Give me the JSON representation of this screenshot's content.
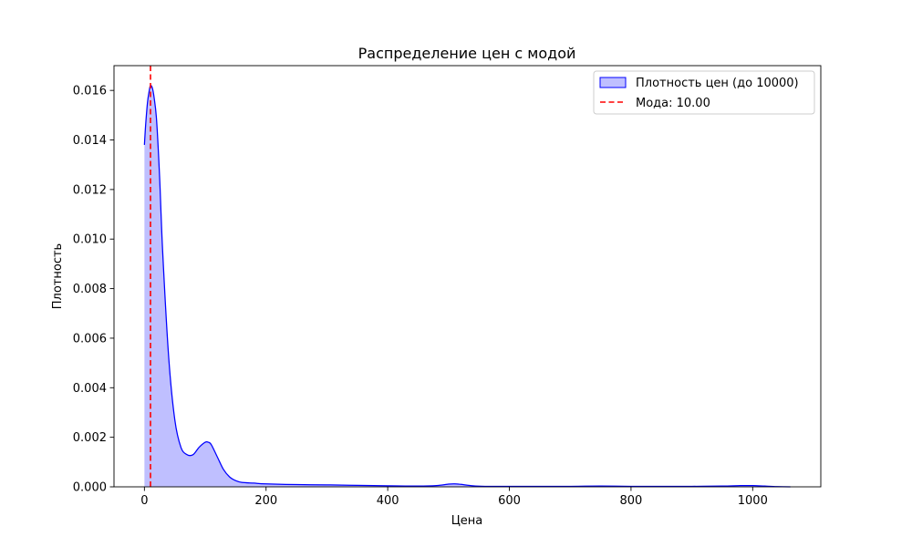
{
  "chart_data": {
    "type": "area",
    "title": "Распределение цен с модой",
    "xlabel": "Цена",
    "ylabel": "Плотность",
    "xlim": [
      -50,
      1112
    ],
    "ylim": [
      0,
      0.017
    ],
    "xticks": [
      0,
      200,
      400,
      600,
      800,
      1000
    ],
    "xtick_labels": [
      "0",
      "200",
      "400",
      "600",
      "800",
      "1000"
    ],
    "yticks": [
      0,
      0.002,
      0.004,
      0.006,
      0.008,
      0.01,
      0.012,
      0.014,
      0.016
    ],
    "ytick_labels": [
      "0.000",
      "0.002",
      "0.004",
      "0.006",
      "0.008",
      "0.010",
      "0.012",
      "0.014",
      "0.016"
    ],
    "grid": false,
    "legend_position": "top-right",
    "series": [
      {
        "name": "Плотность цен (до 10000)",
        "kind": "kde-area",
        "line_color": "#0000ff",
        "fill_color": "#0000ff",
        "fill_alpha": 0.25,
        "x": [
          0,
          2,
          5,
          8,
          10,
          13,
          16,
          20,
          25,
          30,
          40,
          50,
          60,
          70,
          80,
          90,
          100,
          105,
          110,
          120,
          130,
          140,
          150,
          160,
          180,
          200,
          250,
          300,
          350,
          400,
          450,
          480,
          500,
          510,
          520,
          540,
          560,
          600,
          650,
          700,
          750,
          800,
          850,
          900,
          950,
          980,
          1000,
          1020,
          1040,
          1062
        ],
        "y": [
          0.0138,
          0.0146,
          0.0155,
          0.016,
          0.0162,
          0.0161,
          0.0157,
          0.0148,
          0.0125,
          0.0095,
          0.0052,
          0.0027,
          0.0016,
          0.0013,
          0.0013,
          0.0016,
          0.0018,
          0.0018,
          0.0017,
          0.0012,
          0.0007,
          0.0004,
          0.00025,
          0.00018,
          0.00015,
          0.00012,
          9e-05,
          8e-05,
          6e-05,
          4e-05,
          3e-05,
          5e-05,
          0.00011,
          0.00012,
          0.0001,
          4e-05,
          2e-05,
          2e-05,
          2e-05,
          2e-05,
          3e-05,
          2e-05,
          2e-05,
          2e-05,
          3e-05,
          5e-05,
          5e-05,
          3e-05,
          1e-05,
          0
        ]
      },
      {
        "name": "Мода: 10.00",
        "kind": "vline",
        "x_value": 10,
        "color": "#ff0000",
        "dash": true
      }
    ]
  }
}
